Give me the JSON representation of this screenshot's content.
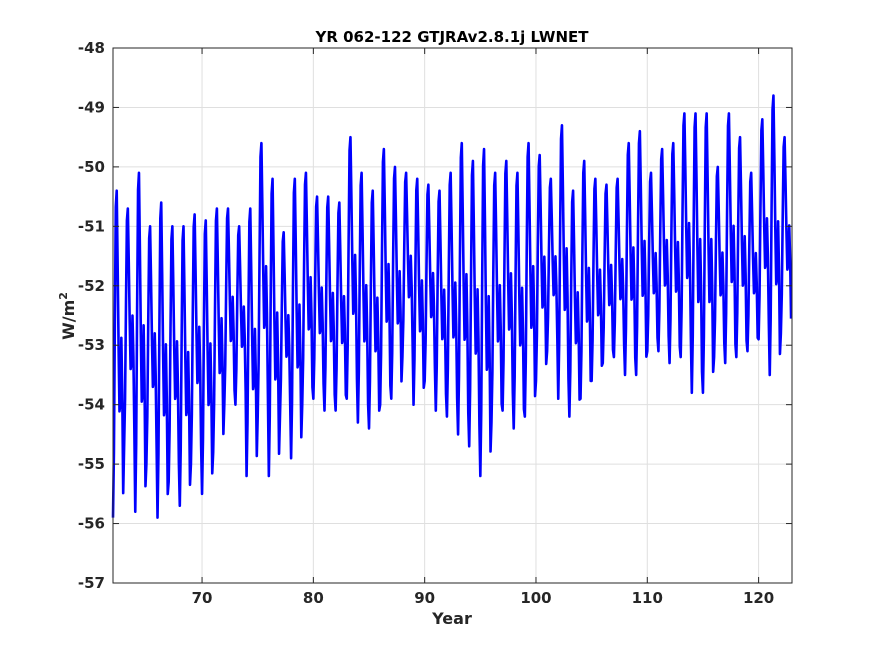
{
  "chart_data": {
    "type": "line",
    "title": "YR 062-122 GTJRAv2.8.1j LWNET",
    "xlabel": "Year",
    "ylabel_base": "W/m",
    "ylabel_sup": "2",
    "xlim": [
      62,
      123
    ],
    "ylim": [
      -57,
      -48
    ],
    "xticks": [
      70,
      80,
      90,
      100,
      110,
      120
    ],
    "xtick_labels": [
      "70",
      "80",
      "90",
      "100",
      "110",
      "120"
    ],
    "yticks": [
      -57,
      -56,
      -55,
      -54,
      -53,
      -52,
      -51,
      -50,
      -49,
      -48
    ],
    "ytick_labels": [
      "-57",
      "-56",
      "-55",
      "-54",
      "-53",
      "-52",
      "-51",
      "-50",
      "-49",
      "-48"
    ],
    "grid": true,
    "series": [
      {
        "color": "#0000ff",
        "points_per_cycle": 12,
        "x_start": 62.0,
        "cycle_peaks": [
          -50.4,
          -50.7,
          -50.1,
          -51.0,
          -50.6,
          -51.0,
          -51.0,
          -50.8,
          -50.9,
          -50.7,
          -50.7,
          -51.0,
          -50.7,
          -49.6,
          -50.2,
          -51.1,
          -50.2,
          -50.1,
          -50.5,
          -50.5,
          -50.6,
          -49.5,
          -50.1,
          -50.4,
          -49.7,
          -50.0,
          -50.1,
          -50.2,
          -50.3,
          -50.4,
          -50.1,
          -49.6,
          -49.9,
          -49.7,
          -50.1,
          -49.9,
          -50.1,
          -49.6,
          -49.8,
          -50.2,
          -49.3,
          -50.4,
          -49.9,
          -50.2,
          -50.3,
          -50.2,
          -49.6,
          -49.4,
          -50.1,
          -49.7,
          -49.6,
          -49.1,
          -49.1,
          -49.1,
          -50.0,
          -49.1,
          -49.5,
          -50.1,
          -49.2,
          -48.8,
          -49.5
        ],
        "cycle_troughs": [
          -55.9,
          -54.7,
          -55.8,
          -55.0,
          -55.9,
          -55.3,
          -55.7,
          -55.0,
          -55.5,
          -54.8,
          -54.0,
          -54.0,
          -55.2,
          -54.2,
          -55.2,
          -54.2,
          -54.9,
          -54.0,
          -53.9,
          -54.1,
          -54.1,
          -53.9,
          -54.3,
          -54.4,
          -54.0,
          -53.9,
          -53.2,
          -54.0,
          -53.6,
          -54.1,
          -54.2,
          -54.5,
          -54.7,
          -55.2,
          -54.3,
          -54.1,
          -54.4,
          -54.2,
          -53.6,
          -53.1,
          -53.9,
          -54.2,
          -53.9,
          -53.6,
          -53.3,
          -53.2,
          -53.5,
          -53.5,
          -53.1,
          -53.1,
          -53.3,
          -53.2,
          -53.8,
          -53.8,
          -53.2,
          -53.3,
          -53.2,
          -53.1,
          -52.9,
          -53.5,
          -52.8
        ]
      }
    ]
  }
}
